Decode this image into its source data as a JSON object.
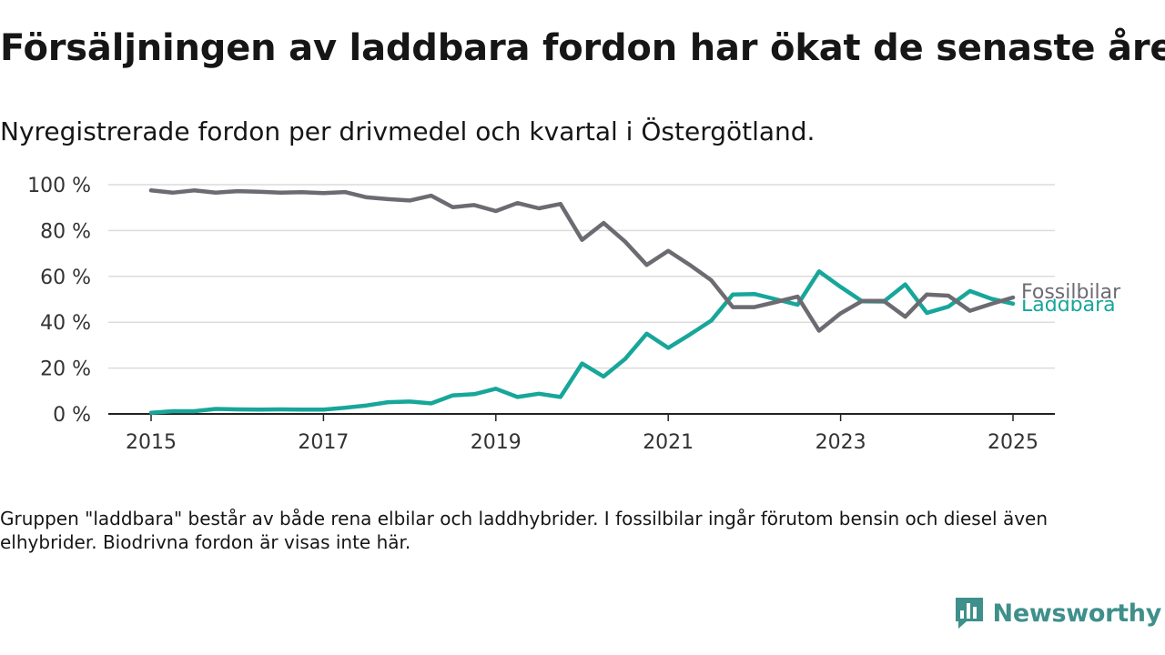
{
  "title": "Försäljningen av laddbara fordon har ökat de senaste åren",
  "subtitle": "Nyregistrerade fordon per drivmedel och kvartal i Östergötland.",
  "note": "Gruppen \"laddbara\" består av både rena elbilar och laddhybrider. I fossilbilar ingår förutom bensin och diesel även elhybrider. Biodrivna fordon är visas inte här.",
  "brand": {
    "name": "Newsworthy",
    "icon": "bar-chart-icon"
  },
  "colors": {
    "fossil": "#6d6b72",
    "laddbara": "#17a69a",
    "grid": "#dcdcdc",
    "axis": "#222222",
    "brand": "#3f8f8b"
  },
  "chart_data": {
    "type": "line",
    "title": "",
    "xlabel": "",
    "ylabel": "",
    "xlim": [
      2014.5,
      2025.5
    ],
    "ylim": [
      0,
      100
    ],
    "yticks": [
      0,
      20,
      40,
      60,
      80,
      100
    ],
    "ytick_labels": [
      "0 %",
      "20 %",
      "40 %",
      "60 %",
      "80 %",
      "100 %"
    ],
    "xticks": [
      2015,
      2017,
      2019,
      2021,
      2023,
      2025
    ],
    "xtick_labels": [
      "2015",
      "2017",
      "2019",
      "2021",
      "2023",
      "2025"
    ],
    "grid": true,
    "legend": "end-of-line labels",
    "x": [
      2015.0,
      2015.25,
      2015.5,
      2015.75,
      2016.0,
      2016.25,
      2016.5,
      2016.75,
      2017.0,
      2017.25,
      2017.5,
      2017.75,
      2018.0,
      2018.25,
      2018.5,
      2018.75,
      2019.0,
      2019.25,
      2019.5,
      2019.75,
      2020.0,
      2020.25,
      2020.5,
      2020.75,
      2021.0,
      2021.25,
      2021.5,
      2021.75,
      2022.0,
      2022.25,
      2022.5,
      2022.75,
      2023.0,
      2023.25,
      2023.5,
      2023.75,
      2024.0,
      2024.25,
      2024.5,
      2024.75,
      2025.0
    ],
    "series": [
      {
        "name": "Fossilbilar",
        "values": [
          97.5,
          96.5,
          97.5,
          96.5,
          97.2,
          96.9,
          96.5,
          96.7,
          96.3,
          96.8,
          94.5,
          93.7,
          93.1,
          95.2,
          90.2,
          91.1,
          88.5,
          92.0,
          89.7,
          91.6,
          75.9,
          83.3,
          75.1,
          65.0,
          71.1,
          65.0,
          58.3,
          46.6,
          46.6,
          48.8,
          51.2,
          36.3,
          43.9,
          49.3,
          49.3,
          42.4,
          52.1,
          51.6,
          45.0,
          48.0,
          50.8
        ]
      },
      {
        "name": "Laddbara",
        "values": [
          0.5,
          1.2,
          1.2,
          2.2,
          2.0,
          1.9,
          2.0,
          1.9,
          1.9,
          2.7,
          3.7,
          5.1,
          5.4,
          4.6,
          8.1,
          8.6,
          11.0,
          7.4,
          8.8,
          7.4,
          22.0,
          16.3,
          24.0,
          35.0,
          28.8,
          34.6,
          40.7,
          52.1,
          52.3,
          50.0,
          47.6,
          62.2,
          55.4,
          49.1,
          49.0,
          56.5,
          44.1,
          46.8,
          53.6,
          50.2,
          48.1
        ]
      }
    ]
  }
}
